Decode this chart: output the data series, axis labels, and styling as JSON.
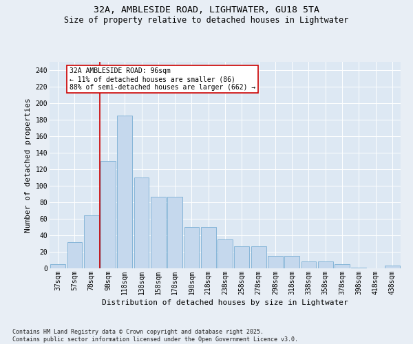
{
  "title": "32A, AMBLESIDE ROAD, LIGHTWATER, GU18 5TA",
  "subtitle": "Size of property relative to detached houses in Lightwater",
  "xlabel": "Distribution of detached houses by size in Lightwater",
  "ylabel": "Number of detached properties",
  "categories": [
    "37sqm",
    "57sqm",
    "78sqm",
    "98sqm",
    "118sqm",
    "138sqm",
    "158sqm",
    "178sqm",
    "198sqm",
    "218sqm",
    "238sqm",
    "258sqm",
    "278sqm",
    "298sqm",
    "318sqm",
    "338sqm",
    "358sqm",
    "378sqm",
    "398sqm",
    "418sqm",
    "438sqm"
  ],
  "values": [
    5,
    32,
    64,
    130,
    185,
    110,
    87,
    87,
    50,
    50,
    35,
    27,
    27,
    15,
    15,
    8,
    8,
    5,
    1,
    0,
    3
  ],
  "bar_color": "#c5d8ed",
  "bar_edge_color": "#7aafd4",
  "vline_x_index": 3,
  "vline_color": "#cc0000",
  "annotation_text": "32A AMBLESIDE ROAD: 96sqm\n← 11% of detached houses are smaller (86)\n88% of semi-detached houses are larger (662) →",
  "annotation_box_color": "#ffffff",
  "annotation_box_edge_color": "#cc0000",
  "ylim": [
    0,
    250
  ],
  "yticks": [
    0,
    20,
    40,
    60,
    80,
    100,
    120,
    140,
    160,
    180,
    200,
    220,
    240
  ],
  "bg_color": "#e8eef5",
  "plot_bg_color": "#dde8f3",
  "footer_line1": "Contains HM Land Registry data © Crown copyright and database right 2025.",
  "footer_line2": "Contains public sector information licensed under the Open Government Licence v3.0.",
  "title_fontsize": 9.5,
  "subtitle_fontsize": 8.5,
  "tick_fontsize": 7,
  "label_fontsize": 8,
  "annotation_fontsize": 7,
  "footer_fontsize": 6
}
